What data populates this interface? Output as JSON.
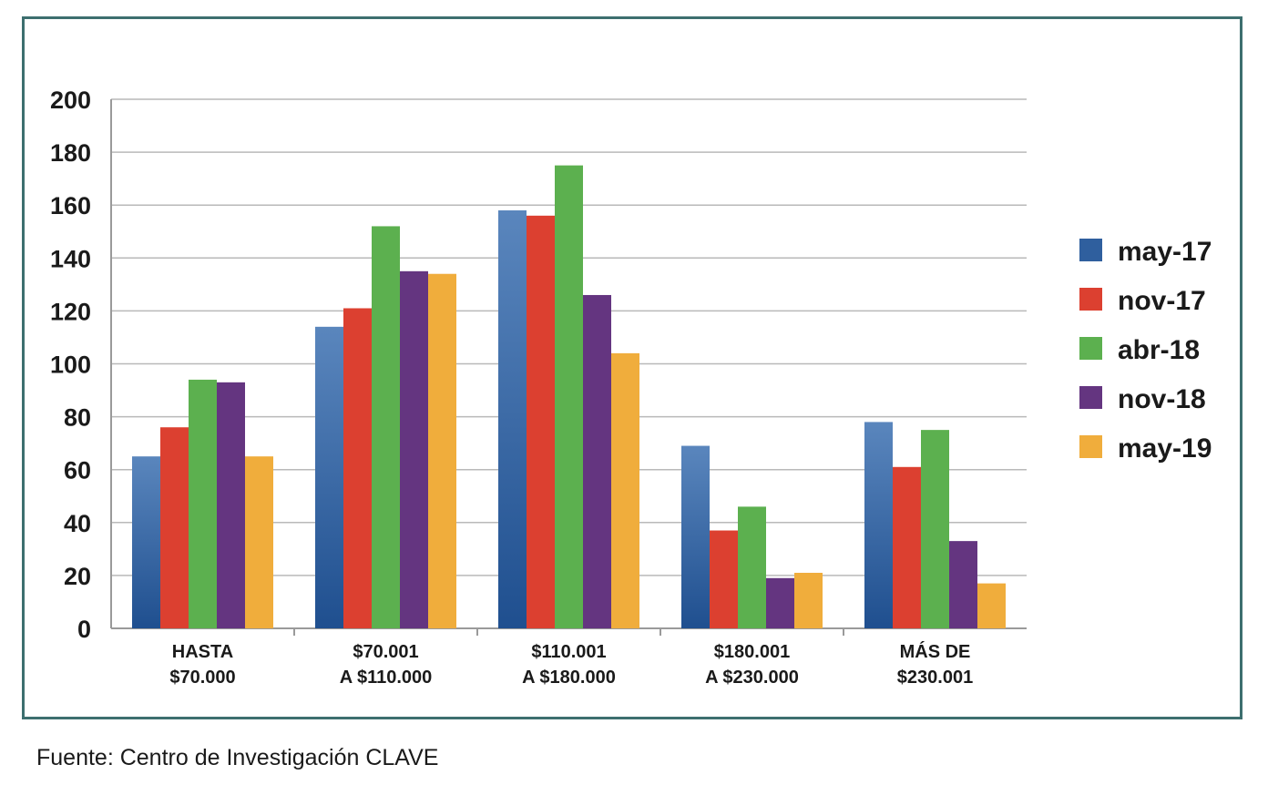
{
  "chart_data": {
    "type": "bar",
    "title": "",
    "xlabel": "",
    "ylabel": "",
    "ylim": [
      0,
      200
    ],
    "yticks": [
      0,
      20,
      40,
      60,
      80,
      100,
      120,
      140,
      160,
      180,
      200
    ],
    "grid": true,
    "legend_position": "right",
    "categories": [
      [
        "HASTA",
        "$70.000"
      ],
      [
        "$70.001",
        "A $110.000"
      ],
      [
        "$110.001",
        "A $180.000"
      ],
      [
        "$180.001",
        "A $230.000"
      ],
      [
        "MÁS DE",
        "$230.001"
      ]
    ],
    "series": [
      {
        "name": "may-17",
        "color": "#2f5f9e",
        "values": [
          65,
          114,
          158,
          69,
          78
        ]
      },
      {
        "name": "nov-17",
        "color": "#dc4030",
        "values": [
          76,
          121,
          156,
          37,
          61
        ]
      },
      {
        "name": "abr-18",
        "color": "#5cb04f",
        "values": [
          94,
          152,
          175,
          46,
          75
        ]
      },
      {
        "name": "nov-18",
        "color": "#643580",
        "values": [
          93,
          135,
          126,
          19,
          33
        ]
      },
      {
        "name": "may-19",
        "color": "#f0ad3c",
        "values": [
          65,
          134,
          104,
          21,
          17
        ]
      }
    ]
  },
  "source": "Fuente: Centro de Investigación CLAVE"
}
